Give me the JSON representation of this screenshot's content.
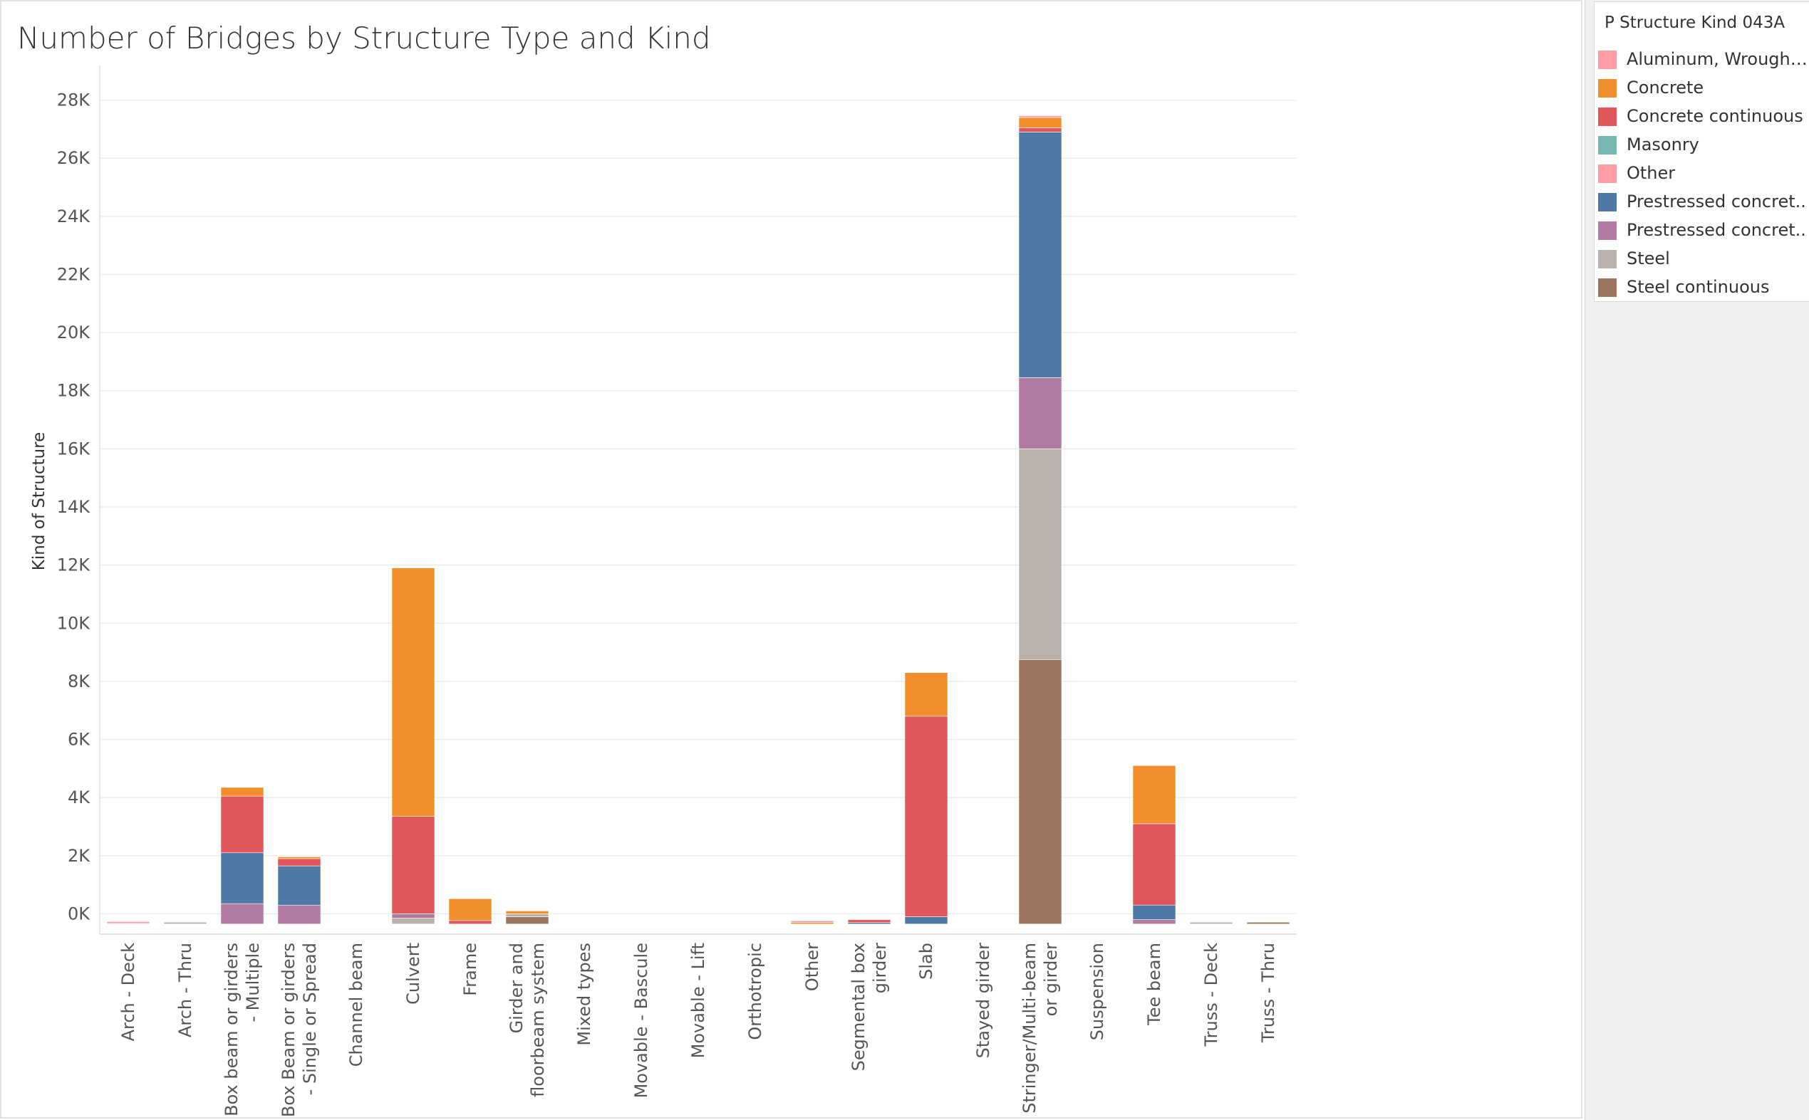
{
  "colors": {
    "Aluminum, Wrought ..": "#ff9da7",
    "Concrete": "#f28e2b",
    "Concrete continuous": "#e15759",
    "Masonry": "#76b7b2",
    "Other": "#ff9da7",
    "Prestressed concret..1": "#4e79a7",
    "Prestressed concret..2": "#b07aa1",
    "Steel": "#bab0ac",
    "Steel continuous": "#9c755f"
  },
  "legend": {
    "title": "P Structure Kind 043A",
    "items": [
      {
        "label": "Aluminum, Wrought ..",
        "color": "#ff9da7"
      },
      {
        "label": "Concrete",
        "color": "#f28e2b"
      },
      {
        "label": "Concrete continuous",
        "color": "#e15759"
      },
      {
        "label": "Masonry",
        "color": "#76b7b2"
      },
      {
        "label": "Other",
        "color": "#ff9da7"
      },
      {
        "label": "Prestressed concret..",
        "color": "#4e79a7"
      },
      {
        "label": "Prestressed concret..",
        "color": "#b07aa1"
      },
      {
        "label": "Steel",
        "color": "#bab0ac"
      },
      {
        "label": "Steel continuous",
        "color": "#9c755f"
      }
    ]
  },
  "chart_data": {
    "type": "bar",
    "stacked": true,
    "title": "Number of Bridges by Structure Type and Kind",
    "ylabel": "Kind of Structure",
    "xlabel": "",
    "ylim": [
      -700,
      28700
    ],
    "yticks": [
      0,
      2000,
      4000,
      6000,
      8000,
      10000,
      12000,
      14000,
      16000,
      18000,
      20000,
      22000,
      24000,
      26000,
      28000
    ],
    "ytick_labels": [
      "0K",
      "2K",
      "4K",
      "6K",
      "8K",
      "10K",
      "12K",
      "14K",
      "16K",
      "18K",
      "20K",
      "22K",
      "24K",
      "26K",
      "28K"
    ],
    "baseline": -350,
    "grid": true,
    "legend_position": "right",
    "categories": [
      [
        "Arch - Deck"
      ],
      [
        "Arch - Thru"
      ],
      [
        "Box beam or girders",
        "- Multiple"
      ],
      [
        "Box Beam or girders",
        "- Single or Spread"
      ],
      [
        "Channel beam"
      ],
      [
        "Culvert"
      ],
      [
        "Frame"
      ],
      [
        "Girder and",
        "floorbeam system"
      ],
      [
        "Mixed types"
      ],
      [
        "Movable - Bascule"
      ],
      [
        "Movable - Lift"
      ],
      [
        "Orthotropic"
      ],
      [
        "Other"
      ],
      [
        "Segmental box",
        "girder"
      ],
      [
        "Slab"
      ],
      [
        "Stayed girder"
      ],
      [
        "Stringer/Multi-beam",
        "or girder"
      ],
      [
        "Suspension"
      ],
      [
        "Tee beam"
      ],
      [
        "Truss - Deck"
      ],
      [
        "Truss - Thru"
      ]
    ],
    "series": [
      {
        "name": "Steel continuous",
        "color": "#9c755f",
        "values": [
          0,
          0,
          0,
          0,
          0,
          0,
          0,
          250,
          0,
          0,
          0,
          0,
          0,
          0,
          0,
          0,
          9100,
          0,
          0,
          0,
          50
        ]
      },
      {
        "name": "Steel",
        "color": "#bab0ac",
        "values": [
          20,
          50,
          0,
          0,
          0,
          200,
          0,
          100,
          0,
          0,
          0,
          0,
          0,
          0,
          0,
          0,
          7250,
          0,
          0,
          50,
          0
        ]
      },
      {
        "name": "Prestressed concret..",
        "color": "#b07aa1",
        "values": [
          0,
          0,
          700,
          650,
          0,
          150,
          0,
          0,
          0,
          0,
          0,
          0,
          0,
          0,
          0,
          0,
          2450,
          0,
          150,
          0,
          0
        ]
      },
      {
        "name": "Prestressed concret..",
        "color": "#4e79a7",
        "values": [
          0,
          0,
          1750,
          1350,
          0,
          0,
          0,
          0,
          0,
          0,
          0,
          0,
          0,
          50,
          250,
          0,
          8450,
          0,
          500,
          0,
          0
        ]
      },
      {
        "name": "Masonry",
        "color": "#76b7b2",
        "values": [
          0,
          0,
          0,
          0,
          0,
          0,
          0,
          0,
          0,
          0,
          0,
          0,
          0,
          0,
          0,
          0,
          0,
          0,
          0,
          0,
          0
        ]
      },
      {
        "name": "Concrete continuous",
        "color": "#e15759",
        "values": [
          0,
          0,
          1950,
          250,
          0,
          3350,
          120,
          0,
          0,
          0,
          0,
          0,
          0,
          100,
          6900,
          0,
          150,
          0,
          2800,
          0,
          0
        ]
      },
      {
        "name": "Concrete",
        "color": "#f28e2b",
        "values": [
          0,
          0,
          300,
          50,
          0,
          8550,
          750,
          100,
          0,
          0,
          0,
          0,
          50,
          0,
          1500,
          0,
          350,
          0,
          2000,
          0,
          0
        ]
      },
      {
        "name": "Other",
        "color": "#ff9da7",
        "values": [
          0,
          0,
          0,
          0,
          0,
          0,
          0,
          0,
          0,
          0,
          0,
          0,
          30,
          0,
          0,
          0,
          50,
          0,
          0,
          0,
          0
        ]
      },
      {
        "name": "Aluminum, Wrought ..",
        "color": "#ff9da7",
        "values": [
          50,
          0,
          0,
          0,
          0,
          0,
          0,
          0,
          0,
          0,
          0,
          0,
          0,
          0,
          0,
          0,
          0,
          0,
          0,
          0,
          0
        ]
      }
    ]
  }
}
